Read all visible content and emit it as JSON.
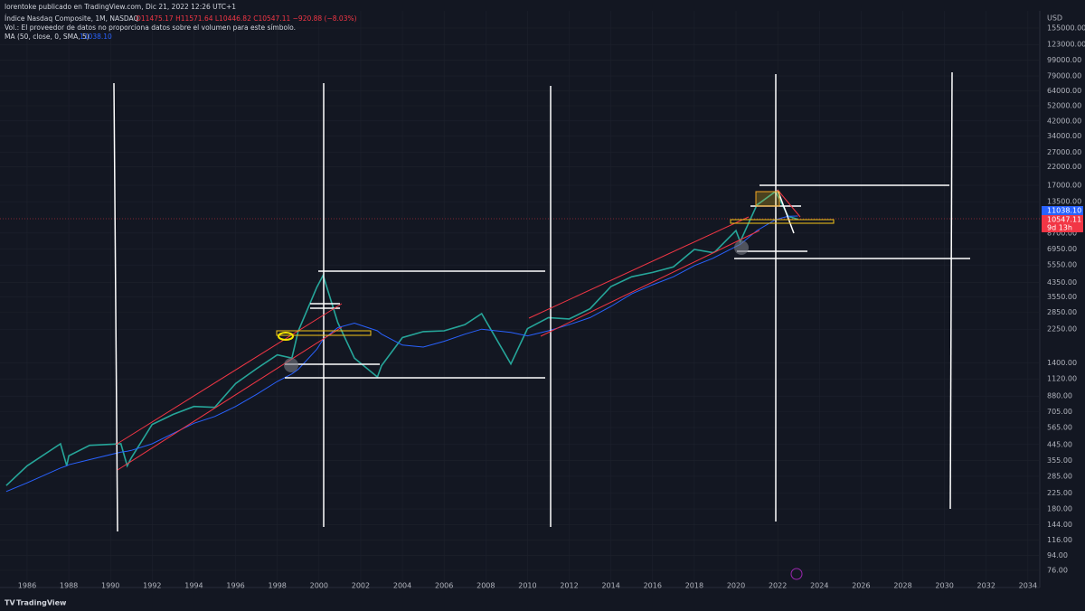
{
  "header": "lorentoke publicado en TradingView.com, Dic 21, 2022 12:26 UTC+1",
  "legend": {
    "symbol": "Índice Nasdaq Composite, 1M, NASDAQ",
    "ohlc": "O11475.17 H11571.64 L10446.82 C10547.11 −920.88 (−8.03%)",
    "volume": "Vol.: El proveedor de datos no proporciona datos sobre el volumen para este símbolo.",
    "ma": "MA (50, close, 0, SMA, 5)",
    "ma_value": "11038.10"
  },
  "currency": "USD",
  "price_labels": {
    "ma": "11038.10",
    "last": "10547.11",
    "countdown": "9d 13h"
  },
  "brand": "TradingView",
  "chart_data": {
    "type": "line",
    "log_scale": true,
    "grid": true,
    "x": [
      1985.0,
      1986,
      1987.6,
      1987.9,
      1988,
      1989,
      1990.5,
      1990.8,
      1991,
      1992,
      1993,
      1994,
      1995,
      1996,
      1997,
      1998,
      1998.7,
      1999,
      1999.9,
      2000.2,
      2000.9,
      2001.7,
      2002.8,
      2003,
      2004,
      2005,
      2006,
      2007,
      2007.8,
      2009.2,
      2010,
      2011,
      2012,
      2013,
      2014,
      2015,
      2016,
      2017,
      2018,
      2018.9,
      2019,
      2020,
      2020.2,
      2021,
      2021.9,
      2022.5,
      2022.97
    ],
    "series": [
      {
        "name": "Índice Nasdaq Composite",
        "color": "#26a69a",
        "values": [
          250,
          330,
          450,
          330,
          380,
          440,
          450,
          330,
          370,
          590,
          680,
          760,
          750,
          1050,
          1290,
          1570,
          1500,
          2190,
          4070,
          4800,
          2470,
          1500,
          1150,
          1350,
          2000,
          2175,
          2200,
          2400,
          2800,
          1380,
          2270,
          2650,
          2600,
          3000,
          4100,
          4700,
          5000,
          5400,
          6900,
          6600,
          6700,
          9000,
          7700,
          12900,
          15600,
          11000,
          10547.11
        ]
      },
      {
        "name": "MA (50, close, 0, SMA, 5)",
        "color": "#2962ff",
        "values": [
          230,
          260,
          320,
          330,
          335,
          360,
          400,
          405,
          410,
          450,
          520,
          600,
          660,
          760,
          900,
          1080,
          1200,
          1280,
          1700,
          1950,
          2300,
          2450,
          2200,
          2100,
          1800,
          1750,
          1900,
          2100,
          2250,
          2150,
          2050,
          2200,
          2400,
          2650,
          3100,
          3700,
          4200,
          4700,
          5500,
          6100,
          6200,
          7200,
          7400,
          9000,
          10500,
          11000,
          11038.1
        ]
      }
    ],
    "xlim": [
      1984.7,
      2034.57
    ],
    "xticks": [
      1986,
      1988,
      1990,
      1992,
      1994,
      1996,
      1998,
      2000,
      2002,
      2004,
      2006,
      2008,
      2010,
      2012,
      2014,
      2016,
      2018,
      2020,
      2022,
      2024,
      2026,
      2028,
      2030,
      2032,
      2034
    ],
    "ylim": [
      76,
      155000
    ],
    "yticks": [
      {
        "value": 155000,
        "label": "155000.00"
      },
      {
        "value": 123000,
        "label": "123000.00"
      },
      {
        "value": 99000,
        "label": "99000.00"
      },
      {
        "value": 79000,
        "label": "79000.00"
      },
      {
        "value": 64000,
        "label": "64000.00"
      },
      {
        "value": 52000,
        "label": "52000.00"
      },
      {
        "value": 42000,
        "label": "42000.00"
      },
      {
        "value": 34000,
        "label": "34000.00"
      },
      {
        "value": 27000,
        "label": "27000.00"
      },
      {
        "value": 22000,
        "label": "22000.00"
      },
      {
        "value": 17000,
        "label": "17000.00"
      },
      {
        "value": 13500,
        "label": "13500.00"
      },
      {
        "value": 8700,
        "label": "8700.00"
      },
      {
        "value": 6950,
        "label": "6950.00"
      },
      {
        "value": 5550,
        "label": "5550.00"
      },
      {
        "value": 4350,
        "label": "4350.00"
      },
      {
        "value": 3550,
        "label": "3550.00"
      },
      {
        "value": 2850,
        "label": "2850.00"
      },
      {
        "value": 2250,
        "label": "2250.00"
      },
      {
        "value": 1400,
        "label": "1400.00"
      },
      {
        "value": 1120,
        "label": "1120.00"
      },
      {
        "value": 880,
        "label": "880.00"
      },
      {
        "value": 705,
        "label": "705.00"
      },
      {
        "value": 565,
        "label": "565.00"
      },
      {
        "value": 445,
        "label": "445.00"
      },
      {
        "value": 355,
        "label": "355.00"
      },
      {
        "value": 285,
        "label": "285.00"
      },
      {
        "value": 225,
        "label": "225.00"
      },
      {
        "value": 180,
        "label": "180.00"
      },
      {
        "value": 144,
        "label": "144.00"
      },
      {
        "value": 116,
        "label": "116.00"
      },
      {
        "value": 94,
        "label": "94.00"
      },
      {
        "value": 76,
        "label": "76.00"
      }
    ]
  }
}
